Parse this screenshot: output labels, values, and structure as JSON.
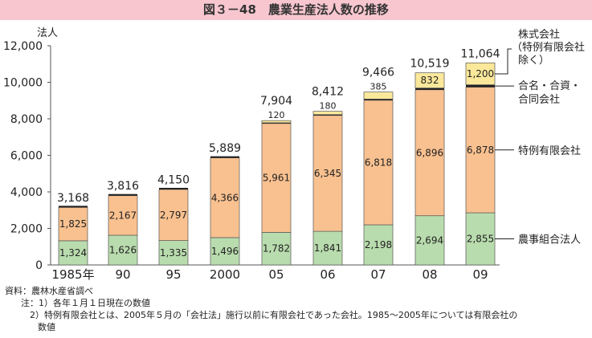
{
  "figure_title": "図３－48　農業生産法人数の推移",
  "chart_data": {
    "type": "bar",
    "stacked": true,
    "y_unit_label": "法人",
    "ylim": [
      0,
      12000
    ],
    "yticks": [
      "0",
      "2,000",
      "4,000",
      "6,000",
      "8,000",
      "10,000",
      "12,000"
    ],
    "categories": [
      "1985年",
      "90",
      "95",
      "2000",
      "05",
      "06",
      "07",
      "08",
      "09"
    ],
    "series": [
      {
        "name": "農事組合法人",
        "color": "#b9dcae",
        "values": [
          1324,
          1626,
          1335,
          1496,
          1782,
          1841,
          2198,
          2694,
          2855
        ],
        "labels": [
          "1,324",
          "1,626",
          "1,335",
          "1,496",
          "1,782",
          "1,841",
          "2,198",
          "2,694",
          "2,855"
        ]
      },
      {
        "name": "特例有限会社",
        "color": "#f9c190",
        "values": [
          1825,
          2167,
          2797,
          4366,
          5961,
          6345,
          6818,
          6896,
          6878
        ],
        "labels": [
          "1,825",
          "2,167",
          "2,797",
          "4,366",
          "5,961",
          "6,345",
          "6,818",
          "6,896",
          "6,878"
        ]
      },
      {
        "name": "合名・合資・合同会社",
        "color": "#222222",
        "values": [
          19,
          23,
          18,
          27,
          41,
          46,
          65,
          97,
          131
        ],
        "labels": []
      },
      {
        "name": "株式会社（特例有限会社除く）",
        "color": "#fbe89a",
        "values": [
          0,
          0,
          0,
          0,
          120,
          180,
          385,
          832,
          1200
        ],
        "labels": [
          "",
          "",
          "",
          "",
          "120",
          "180",
          "385",
          "832",
          "1,200"
        ]
      }
    ],
    "totals": [
      3168,
      3816,
      4150,
      5889,
      7904,
      8412,
      9466,
      10519,
      11064
    ],
    "total_labels": [
      "3,168",
      "3,816",
      "4,150",
      "5,889",
      "7,904",
      "8,412",
      "9,466",
      "10,519",
      "11,064"
    ],
    "legend_labels": {
      "corp": [
        "株式会社",
        "（特例有限会社",
        "除く）"
      ],
      "partner": [
        "合名・合資・",
        "合同会社"
      ],
      "tokurei": [
        "特例有限会社"
      ],
      "noji": [
        "農事組合法人"
      ]
    },
    "legend_placement": "right"
  },
  "notes": {
    "source": "資料：農林水産省調べ",
    "note1": "注：1）各年１月１日現在の数値",
    "note2": "2）特例有限会社とは、2005年５月の「会社法」施行以前に有限会社であった会社。1985～2005年については有限会社の",
    "note2_cont": "数値"
  }
}
